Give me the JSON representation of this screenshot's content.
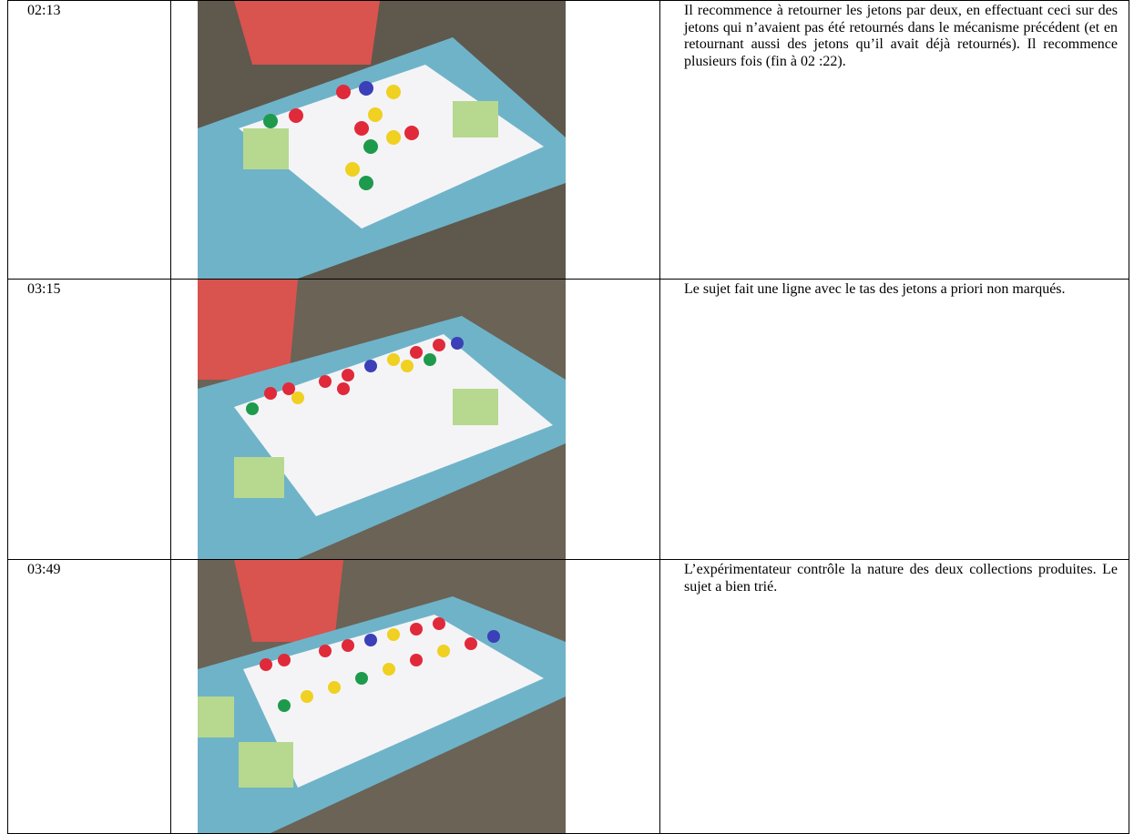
{
  "table": {
    "rows": [
      {
        "time": "02:13",
        "text": "Il recommence à retourner les jetons par deux, en effectuant ceci sur des jetons qui n’avaient pas été retournés dans le mécanisme précédent (et en retournant aussi des jetons qu’il avait déjà retournés). Il recommence plusieurs fois (fin à 02 :22)."
      },
      {
        "time": "03:15",
        "text": "Le sujet fait une ligne avec le tas des jetons a priori non marqués."
      },
      {
        "time": "03:49",
        "text": "L’expérimentateur contrôle la nature des deux collections produites. Le sujet a bien trié."
      }
    ]
  }
}
